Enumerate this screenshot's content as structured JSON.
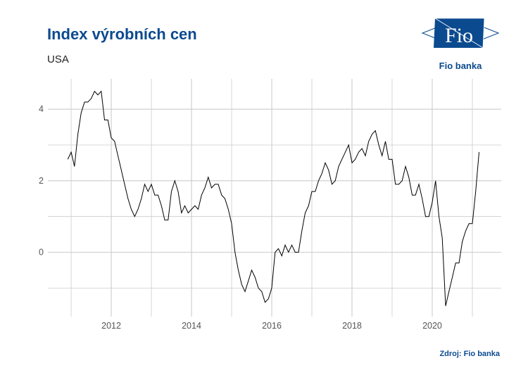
{
  "title": "Index výrobních cen",
  "subtitle": "USA",
  "source": "Zdroj: Fio banka",
  "logo": {
    "text": "Fio",
    "caption": "Fio banka",
    "color": "#0b4a8f"
  },
  "chart_data": {
    "type": "line",
    "title": "Index výrobních cen",
    "subtitle": "USA",
    "xlabel": "",
    "ylabel": "",
    "x_start": "2010-12",
    "x_frequency": "monthly",
    "xlim": [
      2010.42,
      2021.72
    ],
    "ylim": [
      -1.8,
      4.85
    ],
    "x_ticks": [
      2012,
      2014,
      2016,
      2018,
      2020
    ],
    "x_tick_labels": [
      "2012",
      "2014",
      "2016",
      "2018",
      "2020"
    ],
    "y_ticks": [
      0,
      2,
      4
    ],
    "y_tick_labels": [
      "0",
      "2",
      "4"
    ],
    "grid": true,
    "line_color": "#000000",
    "grid_color": "#cccccc",
    "series": [
      {
        "values": [
          2.6,
          2.8,
          2.4,
          3.3,
          3.9,
          4.2,
          4.2,
          4.3,
          4.5,
          4.4,
          4.5,
          3.7,
          3.7,
          3.2,
          3.1,
          2.7,
          2.3,
          1.9,
          1.5,
          1.2,
          1.0,
          1.2,
          1.5,
          1.9,
          1.7,
          1.9,
          1.6,
          1.6,
          1.3,
          0.9,
          0.9,
          1.7,
          2.0,
          1.7,
          1.1,
          1.3,
          1.1,
          1.2,
          1.3,
          1.2,
          1.6,
          1.8,
          2.1,
          1.8,
          1.9,
          1.9,
          1.6,
          1.5,
          1.2,
          0.8,
          0.0,
          -0.5,
          -0.9,
          -1.1,
          -0.8,
          -0.5,
          -0.7,
          -1.0,
          -1.1,
          -1.4,
          -1.3,
          -1.0,
          0.0,
          0.1,
          -0.1,
          0.2,
          0.0,
          0.2,
          0.0,
          0.0,
          0.6,
          1.1,
          1.3,
          1.7,
          1.7,
          2.0,
          2.2,
          2.5,
          2.3,
          1.9,
          2.0,
          2.4,
          2.6,
          2.8,
          3.0,
          2.5,
          2.6,
          2.8,
          2.9,
          2.7,
          3.1,
          3.3,
          3.4,
          3.0,
          2.7,
          3.1,
          2.6,
          2.6,
          1.9,
          1.9,
          2.0,
          2.4,
          2.1,
          1.6,
          1.6,
          1.9,
          1.5,
          1.0,
          1.0,
          1.4,
          2.0,
          1.0,
          0.4,
          -1.5,
          -1.1,
          -0.7,
          -0.3,
          -0.3,
          0.3,
          0.6,
          0.8,
          0.8,
          1.7,
          2.8
        ]
      }
    ]
  }
}
